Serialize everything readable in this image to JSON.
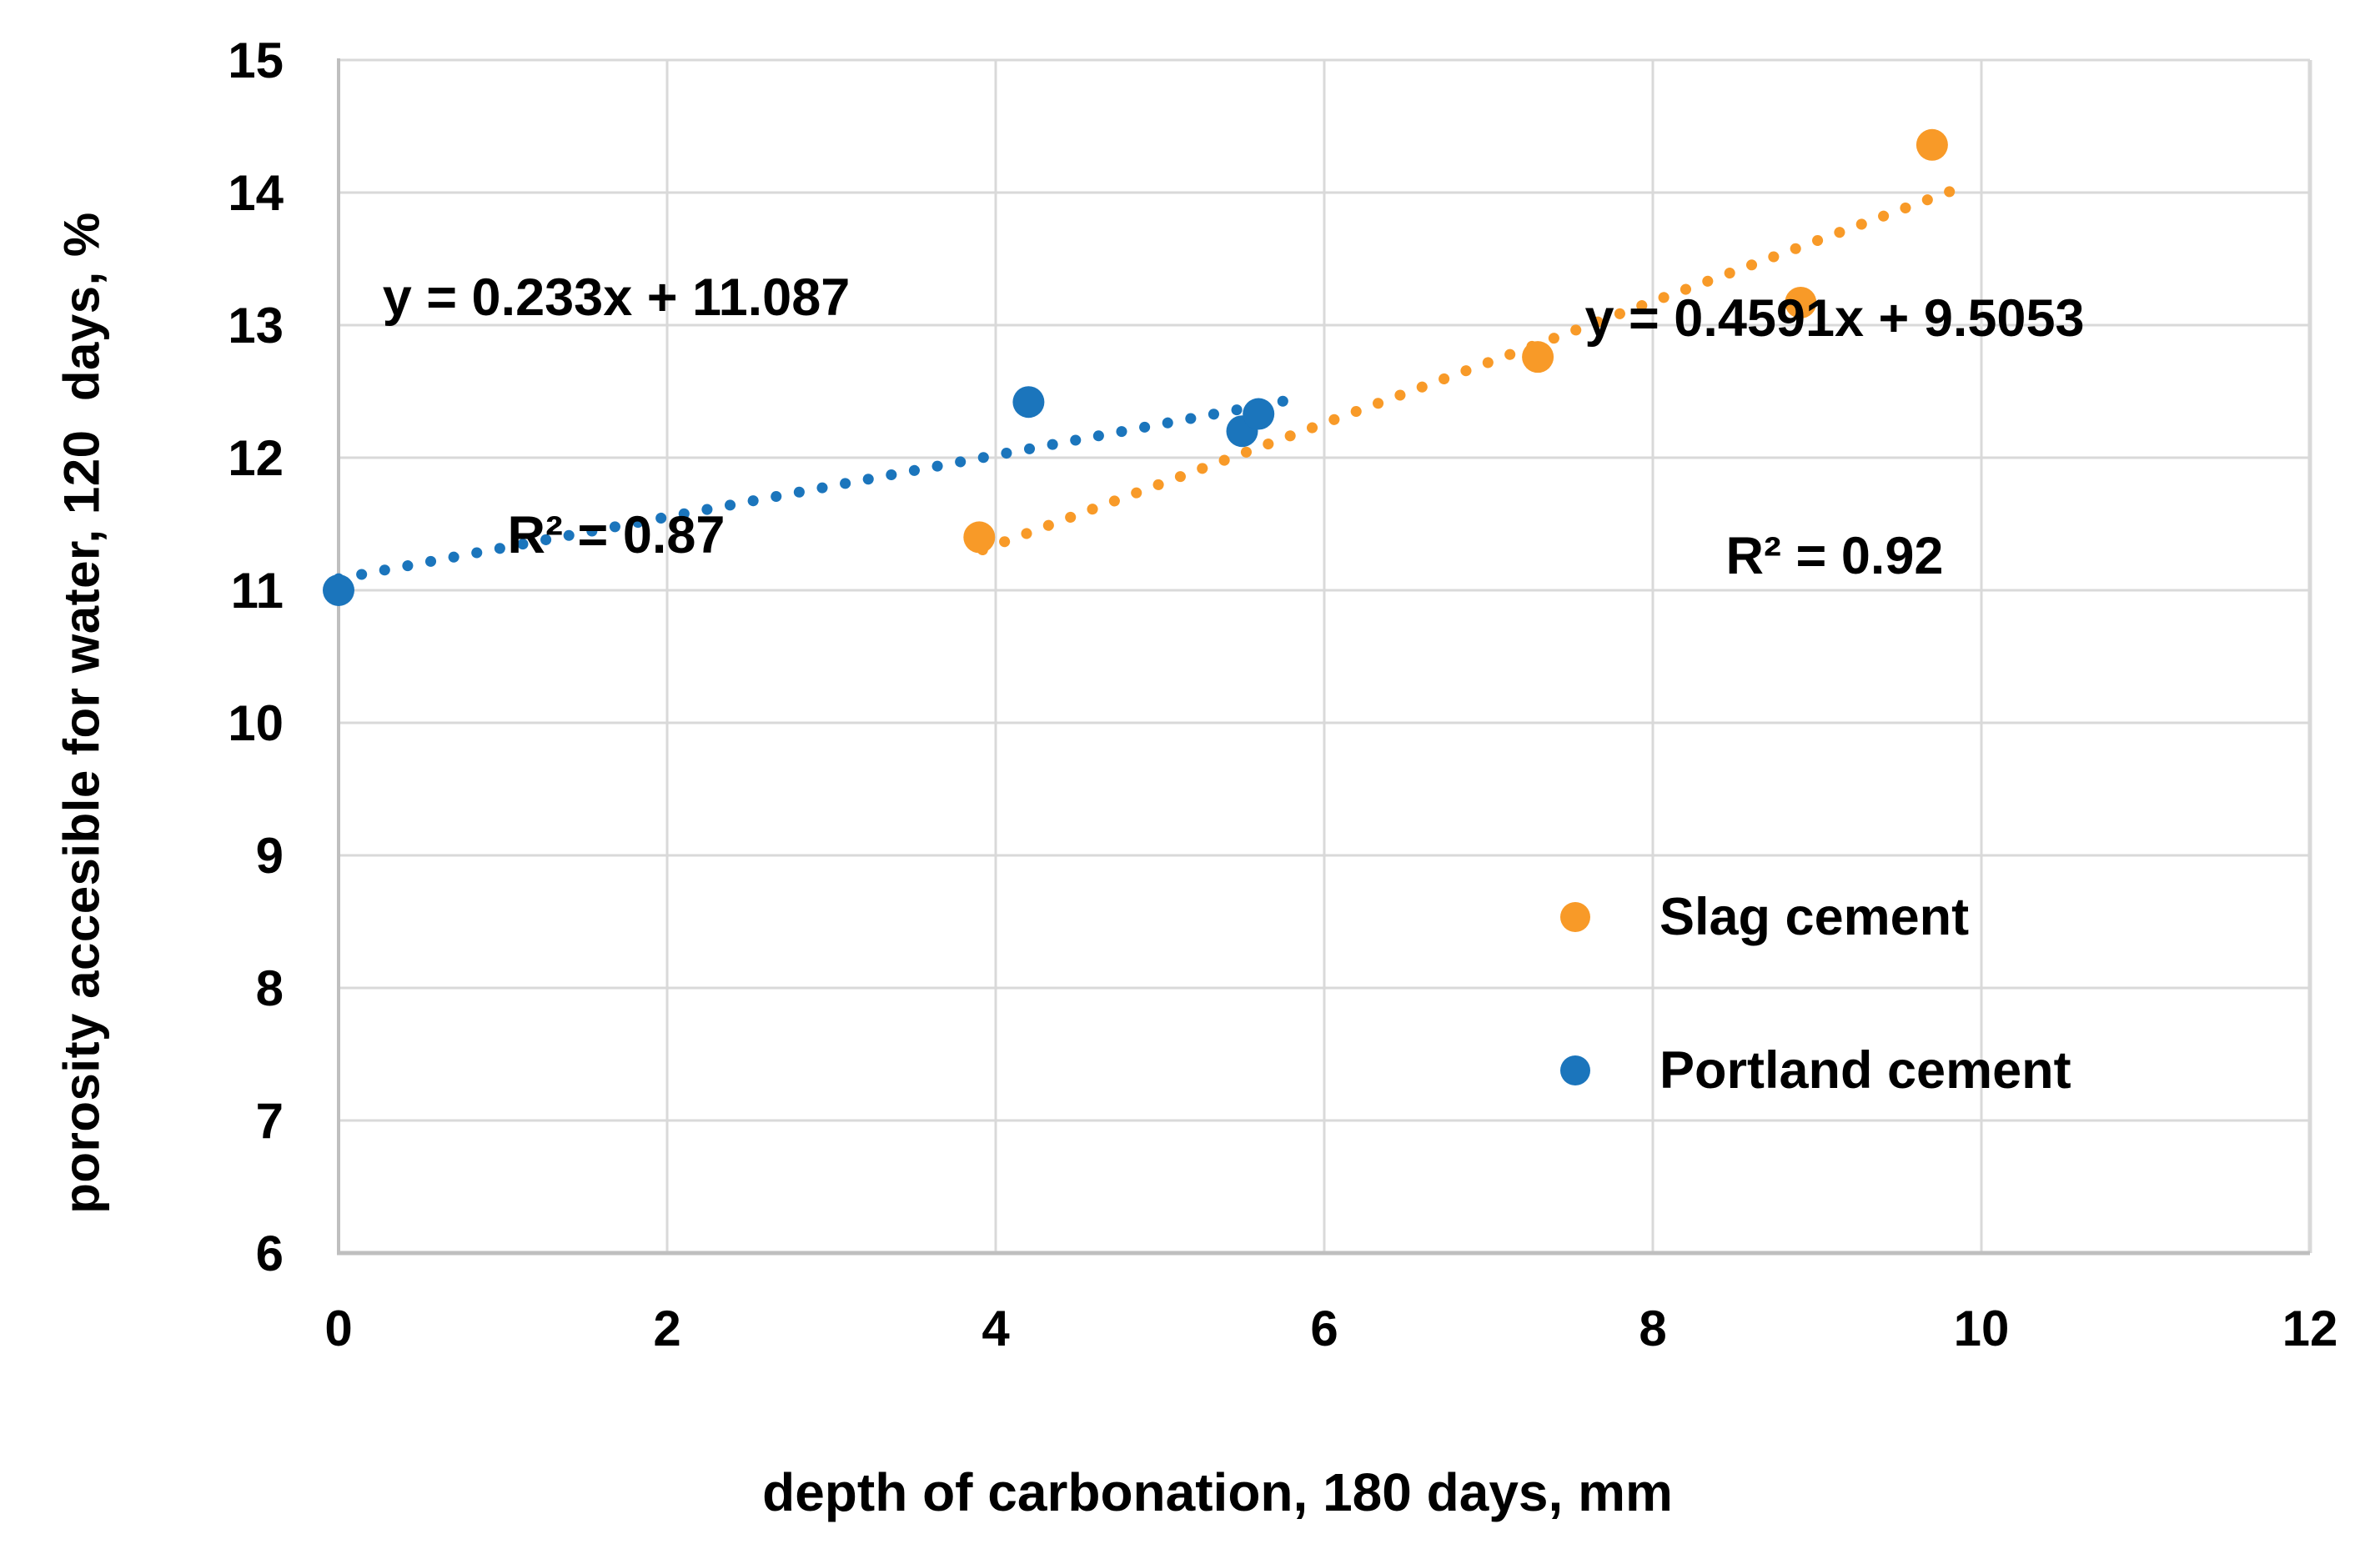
{
  "chart": {
    "x_axis_title": "depth of carbonation, 180 days, mm",
    "y_axis_title": "porosity accesible for water, 120  days, %",
    "background_color": "#FFFFFF"
  },
  "equations": {
    "portland": {
      "line1": "y = 0.233x + 11.087",
      "line2": "R² = 0.87"
    },
    "slag": {
      "line1": "y = 0.4591x + 9.5053",
      "line2": "R² = 0.92"
    }
  },
  "legend": {
    "items": [
      {
        "label": "Slag cement",
        "color": "#F89A28"
      },
      {
        "label": "Portland cement",
        "color": "#1B75BC"
      }
    ]
  },
  "chart_data": {
    "type": "scatter",
    "title": "",
    "xlabel": "depth of carbonation, 180 days, mm",
    "ylabel": "porosity accesible for water, 120  days, %",
    "xlim": [
      0,
      12
    ],
    "ylim": [
      6,
      15
    ],
    "x_ticks": [
      0,
      2,
      4,
      6,
      8,
      10,
      12
    ],
    "y_ticks": [
      6,
      7,
      8,
      9,
      10,
      11,
      12,
      13,
      14,
      15
    ],
    "grid": true,
    "legend_position": "inside-right",
    "colors": {
      "grid": "#D9D9D9",
      "axis": "#BFBFBF",
      "text": "#000000"
    },
    "series": [
      {
        "name": "Slag cement",
        "color": "#F89A28",
        "points": [
          [
            3.9,
            11.4
          ],
          [
            7.3,
            12.76
          ],
          [
            8.9,
            13.17
          ],
          [
            9.7,
            14.36
          ]
        ],
        "trendline": {
          "equation": "y = 0.4591x + 9.5053",
          "r2": "R² = 0.92",
          "slope": 0.4591,
          "intercept": 9.5053,
          "x_start": 3.92,
          "x_end": 9.93,
          "style": "dotted"
        }
      },
      {
        "name": "Portland cement",
        "color": "#1B75BC",
        "points": [
          [
            0,
            11.0
          ],
          [
            4.2,
            12.42
          ],
          [
            5.5,
            12.2
          ],
          [
            5.6,
            12.33
          ]
        ],
        "trendline": {
          "equation": "y = 0.233x + 11.087",
          "r2": "R² = 0.87",
          "slope": 0.233,
          "intercept": 11.087,
          "x_start": 0,
          "x_end": 5.75,
          "style": "dotted"
        }
      }
    ]
  }
}
